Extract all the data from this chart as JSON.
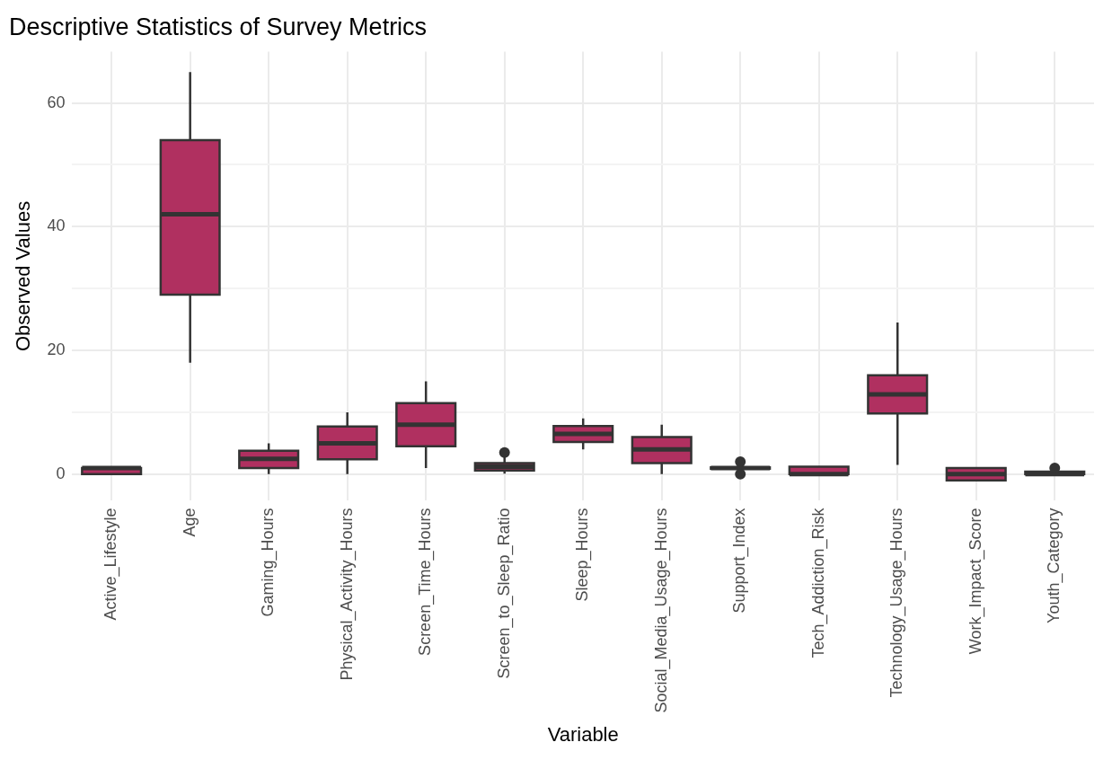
{
  "chart_data": {
    "type": "box",
    "title": "Descriptive Statistics of Survey Metrics",
    "xlabel": "Variable",
    "ylabel": "Observed Values",
    "color": "#b03060",
    "categories": [
      "Active_Lifestyle",
      "Age",
      "Gaming_Hours",
      "Physical_Activity_Hours",
      "Screen_Time_Hours",
      "Screen_to_Sleep_Ratio",
      "Sleep_Hours",
      "Social_Media_Usage_Hours",
      "Support_Index",
      "Tech_Addiction_Risk",
      "Technology_Usage_Hours",
      "Work_Impact_Score",
      "Youth_Category"
    ],
    "boxes": [
      {
        "low": 0,
        "q1": 0,
        "median": 1,
        "q3": 1,
        "high": 1
      },
      {
        "low": 18,
        "q1": 29,
        "median": 42,
        "q3": 54,
        "high": 65
      },
      {
        "low": 0,
        "q1": 1,
        "median": 2.5,
        "q3": 3.8,
        "high": 5
      },
      {
        "low": 0,
        "q1": 2.4,
        "median": 5,
        "q3": 7.7,
        "high": 10
      },
      {
        "low": 1,
        "q1": 4.5,
        "median": 8,
        "q3": 11.5,
        "high": 15
      },
      {
        "low": 0.1,
        "q1": 0.6,
        "median": 1.2,
        "q3": 1.8,
        "high": 3,
        "outliers": [
          3.5
        ]
      },
      {
        "low": 4,
        "q1": 5.2,
        "median": 6.5,
        "q3": 7.8,
        "high": 9
      },
      {
        "low": 0,
        "q1": 1.8,
        "median": 4,
        "q3": 6,
        "high": 8
      },
      {
        "low": 0.5,
        "q1": 0.9,
        "median": 1,
        "q3": 1.1,
        "high": 1.5,
        "outliers": [
          0,
          2
        ]
      },
      {
        "low": 0,
        "q1": 0,
        "median": 0,
        "q3": 1.2,
        "high": 1.2
      },
      {
        "low": 1.5,
        "q1": 9.8,
        "median": 12.9,
        "q3": 16,
        "high": 24.5
      },
      {
        "low": -1,
        "q1": -1,
        "median": 0,
        "q3": 1,
        "high": 1
      },
      {
        "low": 0,
        "q1": 0,
        "median": 0,
        "q3": 0.4,
        "high": 0.4,
        "outliers": [
          1
        ]
      }
    ],
    "ylim": [
      -4.3,
      68.3
    ],
    "yticks": [
      0,
      {
        "value": 10,
        "label": null
      },
      20,
      {
        "value": 30,
        "label": null
      },
      40,
      {
        "value": 50,
        "label": null
      },
      60
    ],
    "grid": true
  }
}
